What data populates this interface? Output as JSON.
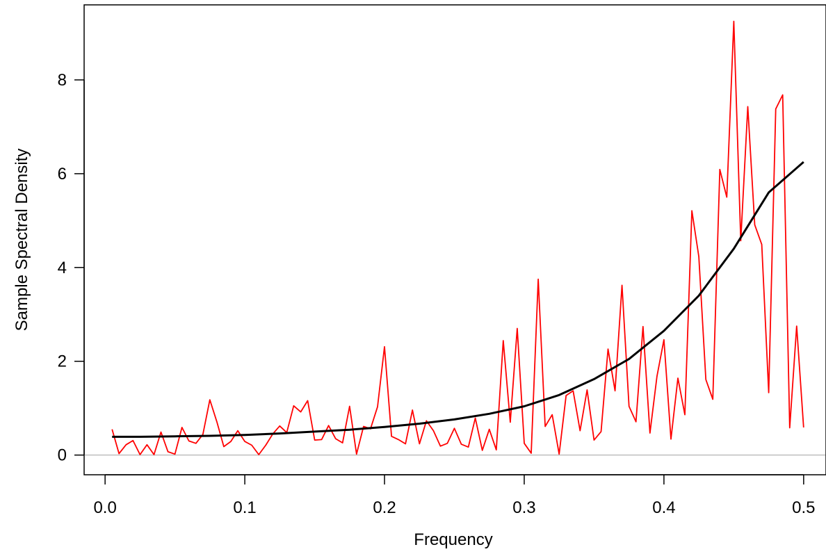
{
  "chart_data": {
    "type": "line",
    "xlabel": "Frequency",
    "ylabel": "Sample Spectral Density",
    "xlim": [
      -0.015,
      0.516
    ],
    "ylim": [
      -0.42,
      9.6
    ],
    "xticks": [
      0.0,
      0.1,
      0.2,
      0.3,
      0.4,
      0.5
    ],
    "xtick_labels": [
      "0.0",
      "0.1",
      "0.2",
      "0.3",
      "0.4",
      "0.5"
    ],
    "yticks": [
      0,
      2,
      4,
      6,
      8
    ],
    "ytick_labels": [
      "0",
      "2",
      "4",
      "6",
      "8"
    ],
    "reference_line_y": 0,
    "grid": false,
    "colors": {
      "sample": "#ff0000",
      "theoretical": "#000000",
      "reference": "#bebebe"
    },
    "series": [
      {
        "x": [
          0.005,
          0.01,
          0.015,
          0.02,
          0.025,
          0.03,
          0.035,
          0.04,
          0.045,
          0.05,
          0.055,
          0.06,
          0.065,
          0.07,
          0.075,
          0.08,
          0.085,
          0.09,
          0.095,
          0.1,
          0.105,
          0.11,
          0.115,
          0.12,
          0.125,
          0.13,
          0.135,
          0.14,
          0.145,
          0.15,
          0.155,
          0.16,
          0.165,
          0.17,
          0.175,
          0.18,
          0.185,
          0.19,
          0.195,
          0.2,
          0.205,
          0.21,
          0.215,
          0.22,
          0.225,
          0.23,
          0.235,
          0.24,
          0.245,
          0.25,
          0.255,
          0.26,
          0.265,
          0.27,
          0.275,
          0.28,
          0.285,
          0.29,
          0.295,
          0.3,
          0.305,
          0.31,
          0.315,
          0.32,
          0.325,
          0.33,
          0.335,
          0.34,
          0.345,
          0.35,
          0.355,
          0.36,
          0.365,
          0.37,
          0.375,
          0.38,
          0.385,
          0.39,
          0.395,
          0.4,
          0.405,
          0.41,
          0.415,
          0.42,
          0.425,
          0.43,
          0.435,
          0.44,
          0.445,
          0.45,
          0.455,
          0.46,
          0.465,
          0.47,
          0.475,
          0.48,
          0.485,
          0.49,
          0.495,
          0.5
        ],
        "y": [
          0.55,
          0.03,
          0.22,
          0.31,
          0.01,
          0.22,
          0.01,
          0.49,
          0.07,
          0.02,
          0.59,
          0.3,
          0.25,
          0.44,
          1.18,
          0.71,
          0.18,
          0.29,
          0.52,
          0.29,
          0.21,
          0.01,
          0.21,
          0.45,
          0.62,
          0.48,
          1.05,
          0.92,
          1.16,
          0.32,
          0.33,
          0.63,
          0.35,
          0.26,
          1.04,
          0.02,
          0.61,
          0.56,
          1.03,
          2.31,
          0.4,
          0.33,
          0.24,
          0.96,
          0.24,
          0.73,
          0.52,
          0.19,
          0.25,
          0.57,
          0.23,
          0.17,
          0.79,
          0.1,
          0.55,
          0.11,
          2.44,
          0.7,
          2.7,
          0.25,
          0.04,
          3.75,
          0.61,
          0.86,
          0.02,
          1.27,
          1.37,
          0.52,
          1.39,
          0.32,
          0.5,
          2.26,
          1.37,
          3.62,
          1.04,
          0.71,
          2.74,
          0.47,
          1.68,
          2.46,
          0.34,
          1.64,
          0.86,
          5.21,
          4.23,
          1.61,
          1.19,
          6.09,
          5.5,
          9.25,
          4.57,
          7.43,
          4.91,
          4.49,
          1.33,
          7.38,
          7.68,
          0.58,
          2.75,
          0.59
        ]
      },
      {
        "x": [
          0.005,
          0.025,
          0.05,
          0.075,
          0.1,
          0.125,
          0.15,
          0.175,
          0.2,
          0.225,
          0.25,
          0.275,
          0.3,
          0.325,
          0.35,
          0.375,
          0.4,
          0.425,
          0.45,
          0.475,
          0.5
        ],
        "y": [
          0.39,
          0.39,
          0.4,
          0.41,
          0.43,
          0.46,
          0.5,
          0.54,
          0.6,
          0.67,
          0.76,
          0.88,
          1.04,
          1.28,
          1.62,
          2.05,
          2.65,
          3.4,
          4.4,
          5.6,
          6.25
        ]
      }
    ]
  }
}
